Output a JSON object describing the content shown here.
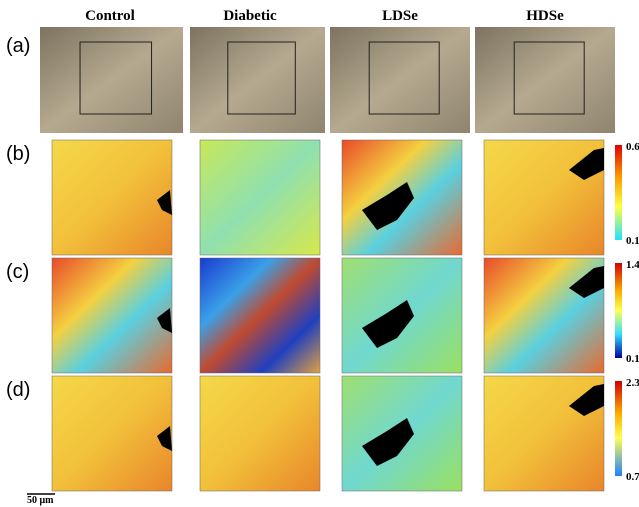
{
  "columns": [
    "Control",
    "Diabetic",
    "LDSe",
    "HDSe"
  ],
  "rows": [
    "(a)",
    "(b)",
    "(c)",
    "(d)"
  ],
  "colorbars": [
    {
      "max": "0.6",
      "min": "0.1"
    },
    {
      "max": "1.4",
      "min": "0.1"
    },
    {
      "max": "2.3",
      "min": "0.7"
    }
  ],
  "scale_bar": "50 μm"
}
